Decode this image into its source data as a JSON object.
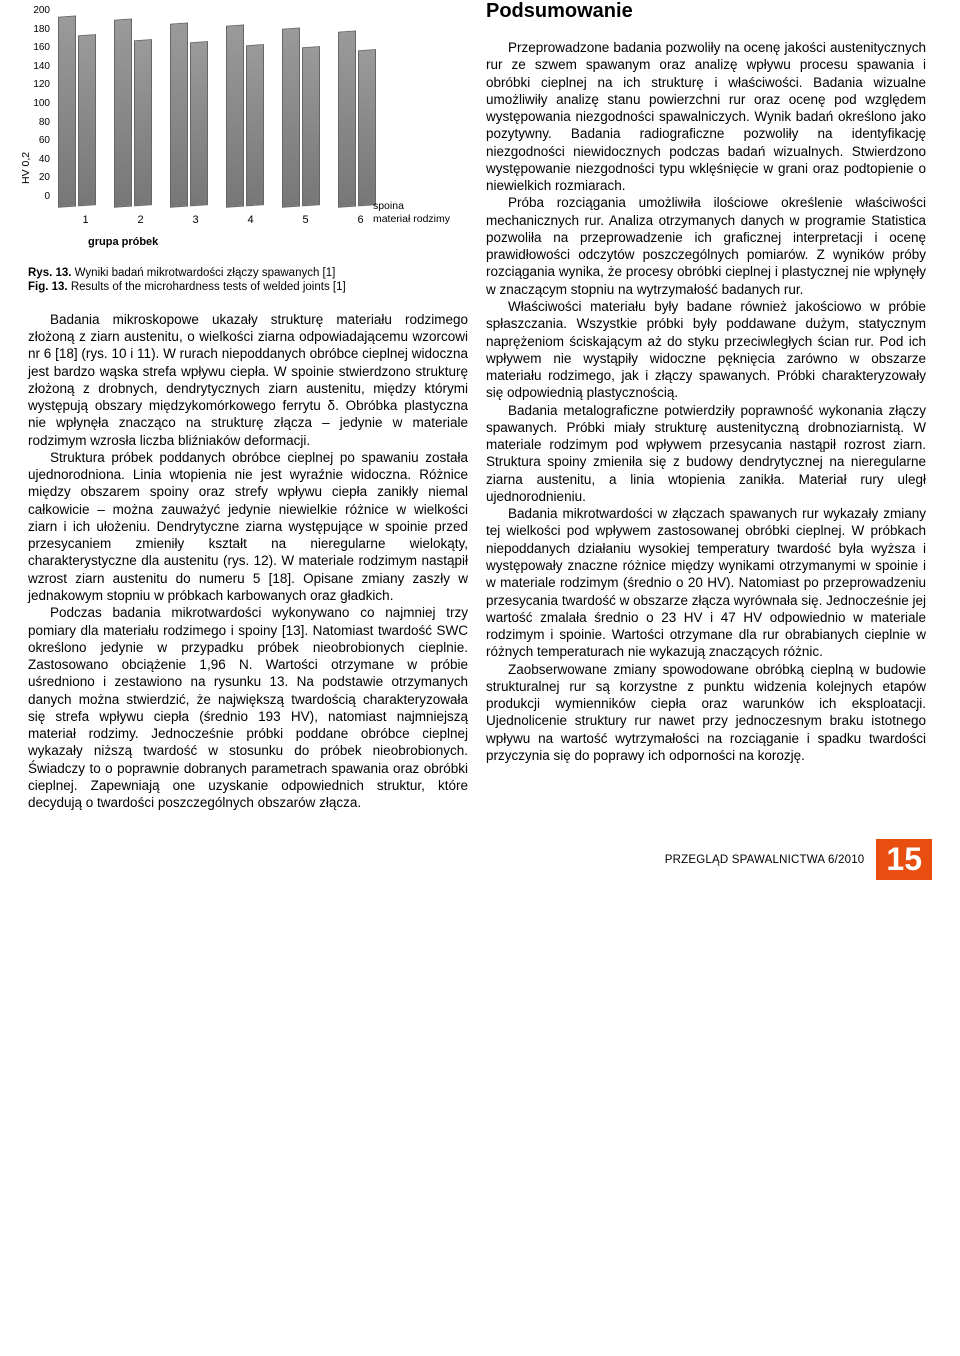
{
  "chart": {
    "type": "bar",
    "y_ticks": [
      "0",
      "20",
      "40",
      "60",
      "80",
      "100",
      "120",
      "140",
      "160",
      "180",
      "200"
    ],
    "y_label": "HV 0,2",
    "x_categories": [
      "1",
      "2",
      "3",
      "4",
      "5",
      "6"
    ],
    "x_label": "grupa próbek",
    "legend": [
      "spoina",
      "materiał rodzimy"
    ],
    "ylim": [
      0,
      200
    ],
    "bar_values": [
      [
        195,
        175
      ],
      [
        192,
        170
      ],
      [
        188,
        168
      ],
      [
        186,
        165
      ],
      [
        183,
        163
      ],
      [
        180,
        160
      ]
    ],
    "bar_color": "#9a9a9a",
    "border_color": "#666666",
    "background_color": "#ffffff",
    "grid_color": "#cccccc",
    "tick_fontsize": 10,
    "label_fontsize": 11
  },
  "caption": {
    "line1_bold": "Rys. 13.",
    "line1_rest": " Wyniki badań mikrotwardości złączy spawanych [1]",
    "line2_bold": "Fig. 13.",
    "line2_rest": " Results of the microhardness tests of welded joints [1]"
  },
  "left_paragraphs": [
    "Badania mikroskopowe ukazały strukturę materiału rodzimego złożoną z ziarn austenitu, o wielkości ziarna odpowiadającemu wzorcowi nr 6 [18] (rys. 10 i 11). W rurach niepoddanych obróbce cieplnej widoczna jest bardzo wąska strefa wpływu ciepła. W spoinie stwierdzono strukturę złożoną z drobnych, dendrytycznych ziarn austenitu, między którymi występują obszary międzykomórkowego ferrytu δ. Obróbka plastyczna nie wpłynęła znacząco na strukturę złącza – jedynie w materiale rodzimym wzrosła liczba bliźniaków deformacji.",
    "Struktura próbek poddanych obróbce cieplnej po spawaniu została ujednorodniona. Linia wtopienia nie jest wyraźnie widoczna. Różnice między obszarem spoiny oraz strefy wpływu ciepła zanikły niemal całkowicie – można zauważyć jedynie niewielkie różnice w wielkości ziarn i ich ułożeniu. Dendrytyczne ziarna występujące w spoinie przed przesycaniem zmieniły kształt na nieregularne wielokąty, charakterystyczne dla austenitu (rys. 12). W materiale rodzimym nastąpił wzrost ziarn austenitu do numeru 5 [18]. Opisane zmiany zaszły w jednakowym stopniu w próbkach karbowanych oraz gładkich.",
    "Podczas badania mikrotwardości wykonywano co najmniej trzy pomiary dla materiału rodzimego i spoiny [13]. Natomiast twardość SWC określono jedynie w przypadku próbek nieobrobionych cieplnie. Zastosowano obciążenie 1,96 N. Wartości otrzymane w próbie uśredniono i zestawiono na rysunku 13. Na podstawie otrzymanych danych można stwierdzić, że największą twardością charakteryzowała się strefa wpływu ciepła (średnio 193 HV), natomiast najmniejszą materiał rodzimy. Jednocześnie próbki poddane obróbce cieplnej wykazały niższą twardość w stosunku do próbek nieobrobionych. Świadczy to o poprawnie dobranych parametrach spawania oraz obróbki cieplnej. Zapewniają one uzyskanie odpowiednich struktur, które decydują o twardości poszczególnych obszarów złącza."
  ],
  "right_title": "Podsumowanie",
  "right_paragraphs": [
    "Przeprowadzone badania pozwoliły na ocenę jakości austenitycznych rur ze szwem spawanym oraz analizę wpływu procesu spawania i obróbki cieplnej na ich strukturę i właściwości. Badania wizualne umożliwiły analizę stanu powierzchni rur oraz ocenę pod względem występowania niezgodności spawalniczych. Wynik badań określono jako pozytywny. Badania radiograficzne pozwoliły na identyfikację niezgodności niewidocznych podczas badań wizualnych. Stwierdzono występowanie niezgodności typu wklęśnięcie w grani oraz podtopienie o niewielkich rozmiarach.",
    "Próba rozciągania umożliwiła ilościowe określenie właściwości mechanicznych rur. Analiza otrzymanych danych w programie Statistica pozwoliła na przeprowadzenie ich graficznej interpretacji i ocenę prawidłowości odczytów poszczególnych pomiarów. Z wyników próby rozciągania wynika, że procesy obróbki cieplnej i plastycznej nie wpłynęły w znaczącym stopniu na wytrzymałość badanych rur.",
    "Właściwości materiału były badane również jakościowo w próbie spłaszczania. Wszystkie próbki były poddawane dużym, statycznym naprężeniom ściskającym aż do styku przeciwległych ścian rur. Pod ich wpływem nie wystąpiły widoczne pęknięcia zarówno w obszarze materiału rodzimego, jak i złączy spawanych. Próbki charakteryzowały się odpowiednią plastycznością.",
    "Badania metalograficzne potwierdziły poprawność wykonania złączy spawanych. Próbki miały strukturę austenityczną drobnoziarnistą. W materiale rodzimym pod wpływem przesycania nastąpił rozrost ziarn. Struktura spoiny zmieniła się z budowy dendrytycznej na nieregularne ziarna austenitu, a linia wtopienia zanikła. Materiał rury uległ ujednorodnieniu.",
    "Badania mikrotwardości w złączach spawanych rur wykazały zmiany tej wielkości pod wpływem zastosowanej obróbki cieplnej. W próbkach niepoddanych działaniu wysokiej temperatury twardość była wyższa i występowały znaczne różnice między wynikami otrzymanymi w spoinie i w materiale rodzimym (średnio o 20 HV). Natomiast po przeprowadzeniu przesycania twardość w obszarze złącza wyrównała się. Jednocześnie jej wartość zmalała średnio o 23 HV i 47 HV odpowiednio w materiale rodzimym i spoinie. Wartości otrzymane dla rur obrabianych cieplnie w różnych temperaturach nie wykazują znaczących różnic.",
    "Zaobserwowane zmiany spowodowane obróbką cieplną w budowie strukturalnej rur są korzystne z punktu widzenia kolejnych etapów produkcji wymienników ciepła oraz warunków ich eksploatacji. Ujednolicenie struktury rur nawet przy jednoczesnym braku istotnego wpływu na wartość wytrzymałości na rozciąganie i spadku twardości przyczynia się do poprawy ich odporności na korozję."
  ],
  "footer": {
    "journal": "PRZEGLĄD SPAWALNICTWA 6/2010",
    "page_number": "15",
    "accent_color": "#e84e10"
  }
}
